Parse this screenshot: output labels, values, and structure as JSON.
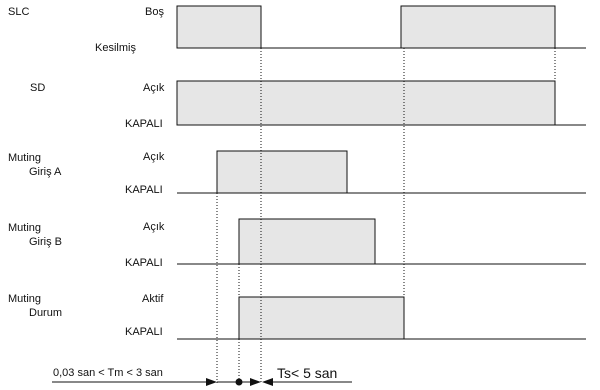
{
  "signals": [
    {
      "name_lines": [
        "SLC"
      ],
      "high_label": "Boş",
      "low_label": "Kesilmiş"
    },
    {
      "name_lines": [
        "SD"
      ],
      "high_label": "Açık",
      "low_label": "KAPALI"
    },
    {
      "name_lines": [
        "Muting",
        "Giriş A"
      ],
      "high_label": "Açık",
      "low_label": "KAPALI"
    },
    {
      "name_lines": [
        "Muting",
        "Giriş B"
      ],
      "high_label": "Açık",
      "low_label": "KAPALI"
    },
    {
      "name_lines": [
        "Muting",
        "Durum"
      ],
      "high_label": "Aktif",
      "low_label": "KAPALI"
    }
  ],
  "timing": {
    "tm_label": "0,03 san < Tm < 3 san",
    "ts_label": "Ts< 5 san"
  },
  "colors": {
    "pulse_fill": "#e6e6e6",
    "line": "#111111"
  }
}
